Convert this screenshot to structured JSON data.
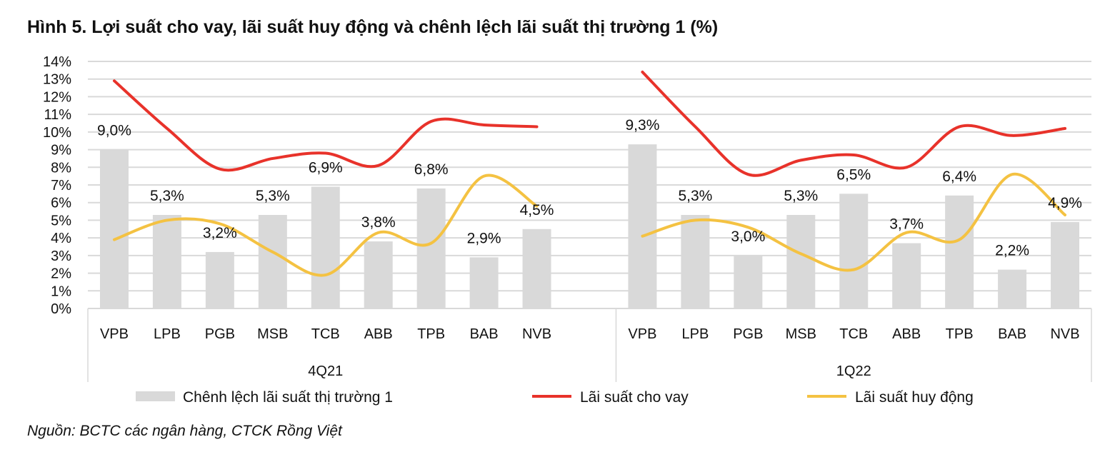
{
  "title": "Hình 5. Lợi suất cho vay, lãi suất huy động và chênh lệch lãi suất thị trường 1 (%)",
  "source": "Nguồn: BCTC các ngân hàng, CTCK Rồng Việt",
  "chart_data": {
    "type": "bar+line",
    "title": "Hình 5. Lợi suất cho vay, lãi suất huy động và chênh lệch lãi suất thị trường 1 (%)",
    "ylim": [
      0,
      14
    ],
    "yticks": [
      "0%",
      "1%",
      "2%",
      "3%",
      "4%",
      "5%",
      "6%",
      "7%",
      "8%",
      "9%",
      "10%",
      "11%",
      "12%",
      "13%",
      "14%"
    ],
    "grid": true,
    "legend_position": "bottom",
    "groups": [
      {
        "label": "4Q21",
        "categories": [
          "VPB",
          "LPB",
          "PGB",
          "MSB",
          "TCB",
          "ABB",
          "TPB",
          "BAB",
          "NVB"
        ],
        "spread": [
          9.0,
          5.3,
          3.2,
          5.3,
          6.9,
          3.8,
          6.8,
          2.9,
          4.5
        ],
        "spread_labels": [
          "9,0%",
          "5,3%",
          "3,2%",
          "5,3%",
          "6,9%",
          "3,8%",
          "6,8%",
          "2,9%",
          "4,5%"
        ],
        "lending": [
          12.9,
          10.2,
          7.9,
          8.5,
          8.8,
          8.1,
          10.6,
          10.4,
          10.3
        ],
        "deposit": [
          3.9,
          5.0,
          4.8,
          3.2,
          1.9,
          4.3,
          3.7,
          7.5,
          5.8
        ]
      },
      {
        "label": "1Q22",
        "categories": [
          "VPB",
          "LPB",
          "PGB",
          "MSB",
          "TCB",
          "ABB",
          "TPB",
          "BAB",
          "NVB"
        ],
        "spread": [
          9.3,
          5.3,
          3.0,
          5.3,
          6.5,
          3.7,
          6.4,
          2.2,
          4.9
        ],
        "spread_labels": [
          "9,3%",
          "5,3%",
          "3,0%",
          "5,3%",
          "6,5%",
          "3,7%",
          "6,4%",
          "2,2%",
          "4,9%"
        ],
        "lending": [
          13.4,
          10.3,
          7.6,
          8.4,
          8.7,
          8.0,
          10.3,
          9.8,
          10.2
        ],
        "deposit": [
          4.1,
          5.0,
          4.6,
          3.1,
          2.2,
          4.3,
          3.9,
          7.6,
          5.3
        ]
      }
    ],
    "series": [
      {
        "name": "Chênh lệch lãi suất thị trường 1",
        "type": "bar",
        "color": "#d9d9d9"
      },
      {
        "name": "Lãi suất cho vay",
        "type": "line",
        "color": "#e8322a"
      },
      {
        "name": "Lãi suất huy động",
        "type": "line",
        "color": "#f4c242"
      }
    ]
  }
}
